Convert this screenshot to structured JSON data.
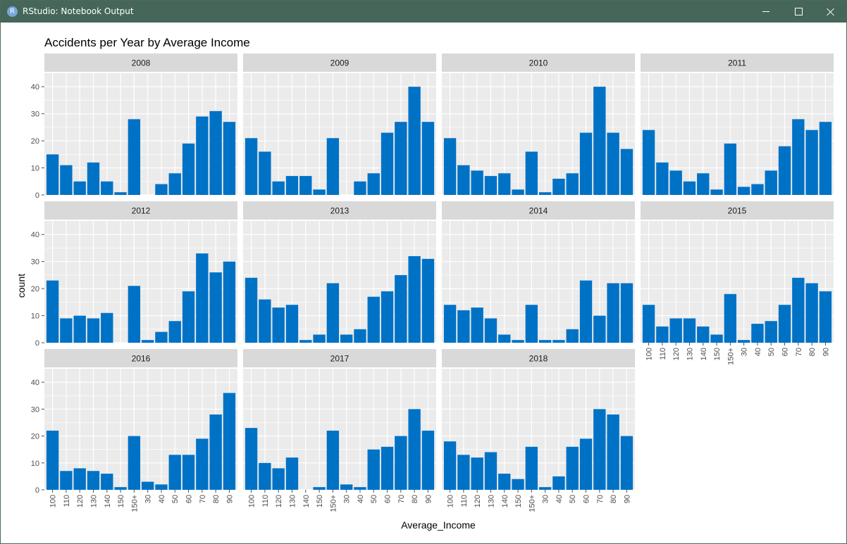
{
  "window": {
    "title": "RStudio: Notebook Output",
    "app_icon_letter": "R",
    "controls": {
      "minimize": "minimize",
      "maximize": "maximize",
      "close": "close"
    }
  },
  "colors": {
    "bar": "#0072c6",
    "panel_bg": "#ebebeb",
    "strip_bg": "#d9d9d9",
    "grid": "#ffffff"
  },
  "chart_data": {
    "type": "bar",
    "title": "Accidents per Year by Average Income",
    "xlabel": "Average_Income",
    "ylabel": "count",
    "ylim": [
      0,
      45
    ],
    "yticks": [
      0,
      10,
      20,
      30,
      40
    ],
    "grid": true,
    "categories": [
      "100",
      "110",
      "120",
      "130",
      "140",
      "150",
      "150+",
      "30",
      "40",
      "50",
      "60",
      "70",
      "80",
      "90"
    ],
    "facets": [
      {
        "name": "2008",
        "values": [
          15,
          11,
          5,
          12,
          5,
          1,
          28,
          0,
          4,
          8,
          19,
          29,
          31,
          27
        ]
      },
      {
        "name": "2009",
        "values": [
          21,
          16,
          5,
          7,
          7,
          2,
          21,
          0,
          5,
          8,
          23,
          27,
          40,
          27
        ]
      },
      {
        "name": "2010",
        "values": [
          21,
          11,
          9,
          7,
          8,
          2,
          16,
          1,
          6,
          8,
          23,
          40,
          23,
          17
        ]
      },
      {
        "name": "2011",
        "values": [
          24,
          12,
          9,
          5,
          8,
          2,
          19,
          3,
          4,
          9,
          18,
          28,
          24,
          27
        ]
      },
      {
        "name": "2012",
        "values": [
          23,
          9,
          10,
          9,
          11,
          0,
          21,
          1,
          4,
          8,
          19,
          33,
          26,
          30
        ]
      },
      {
        "name": "2013",
        "values": [
          24,
          16,
          13,
          14,
          1,
          3,
          22,
          3,
          5,
          17,
          19,
          25,
          32,
          31
        ]
      },
      {
        "name": "2014",
        "values": [
          14,
          12,
          13,
          9,
          3,
          1,
          14,
          1,
          1,
          5,
          23,
          10,
          22,
          22
        ]
      },
      {
        "name": "2015",
        "values": [
          14,
          6,
          9,
          9,
          6,
          3,
          18,
          1,
          7,
          8,
          14,
          24,
          22,
          19
        ]
      },
      {
        "name": "2016",
        "values": [
          22,
          7,
          8,
          7,
          6,
          1,
          20,
          3,
          2,
          13,
          13,
          19,
          28,
          36
        ]
      },
      {
        "name": "2017",
        "values": [
          23,
          10,
          8,
          12,
          0,
          1,
          22,
          2,
          1,
          15,
          16,
          20,
          30,
          22
        ]
      },
      {
        "name": "2018",
        "values": [
          18,
          13,
          12,
          14,
          6,
          4,
          16,
          1,
          5,
          16,
          19,
          30,
          28,
          20
        ]
      }
    ]
  }
}
